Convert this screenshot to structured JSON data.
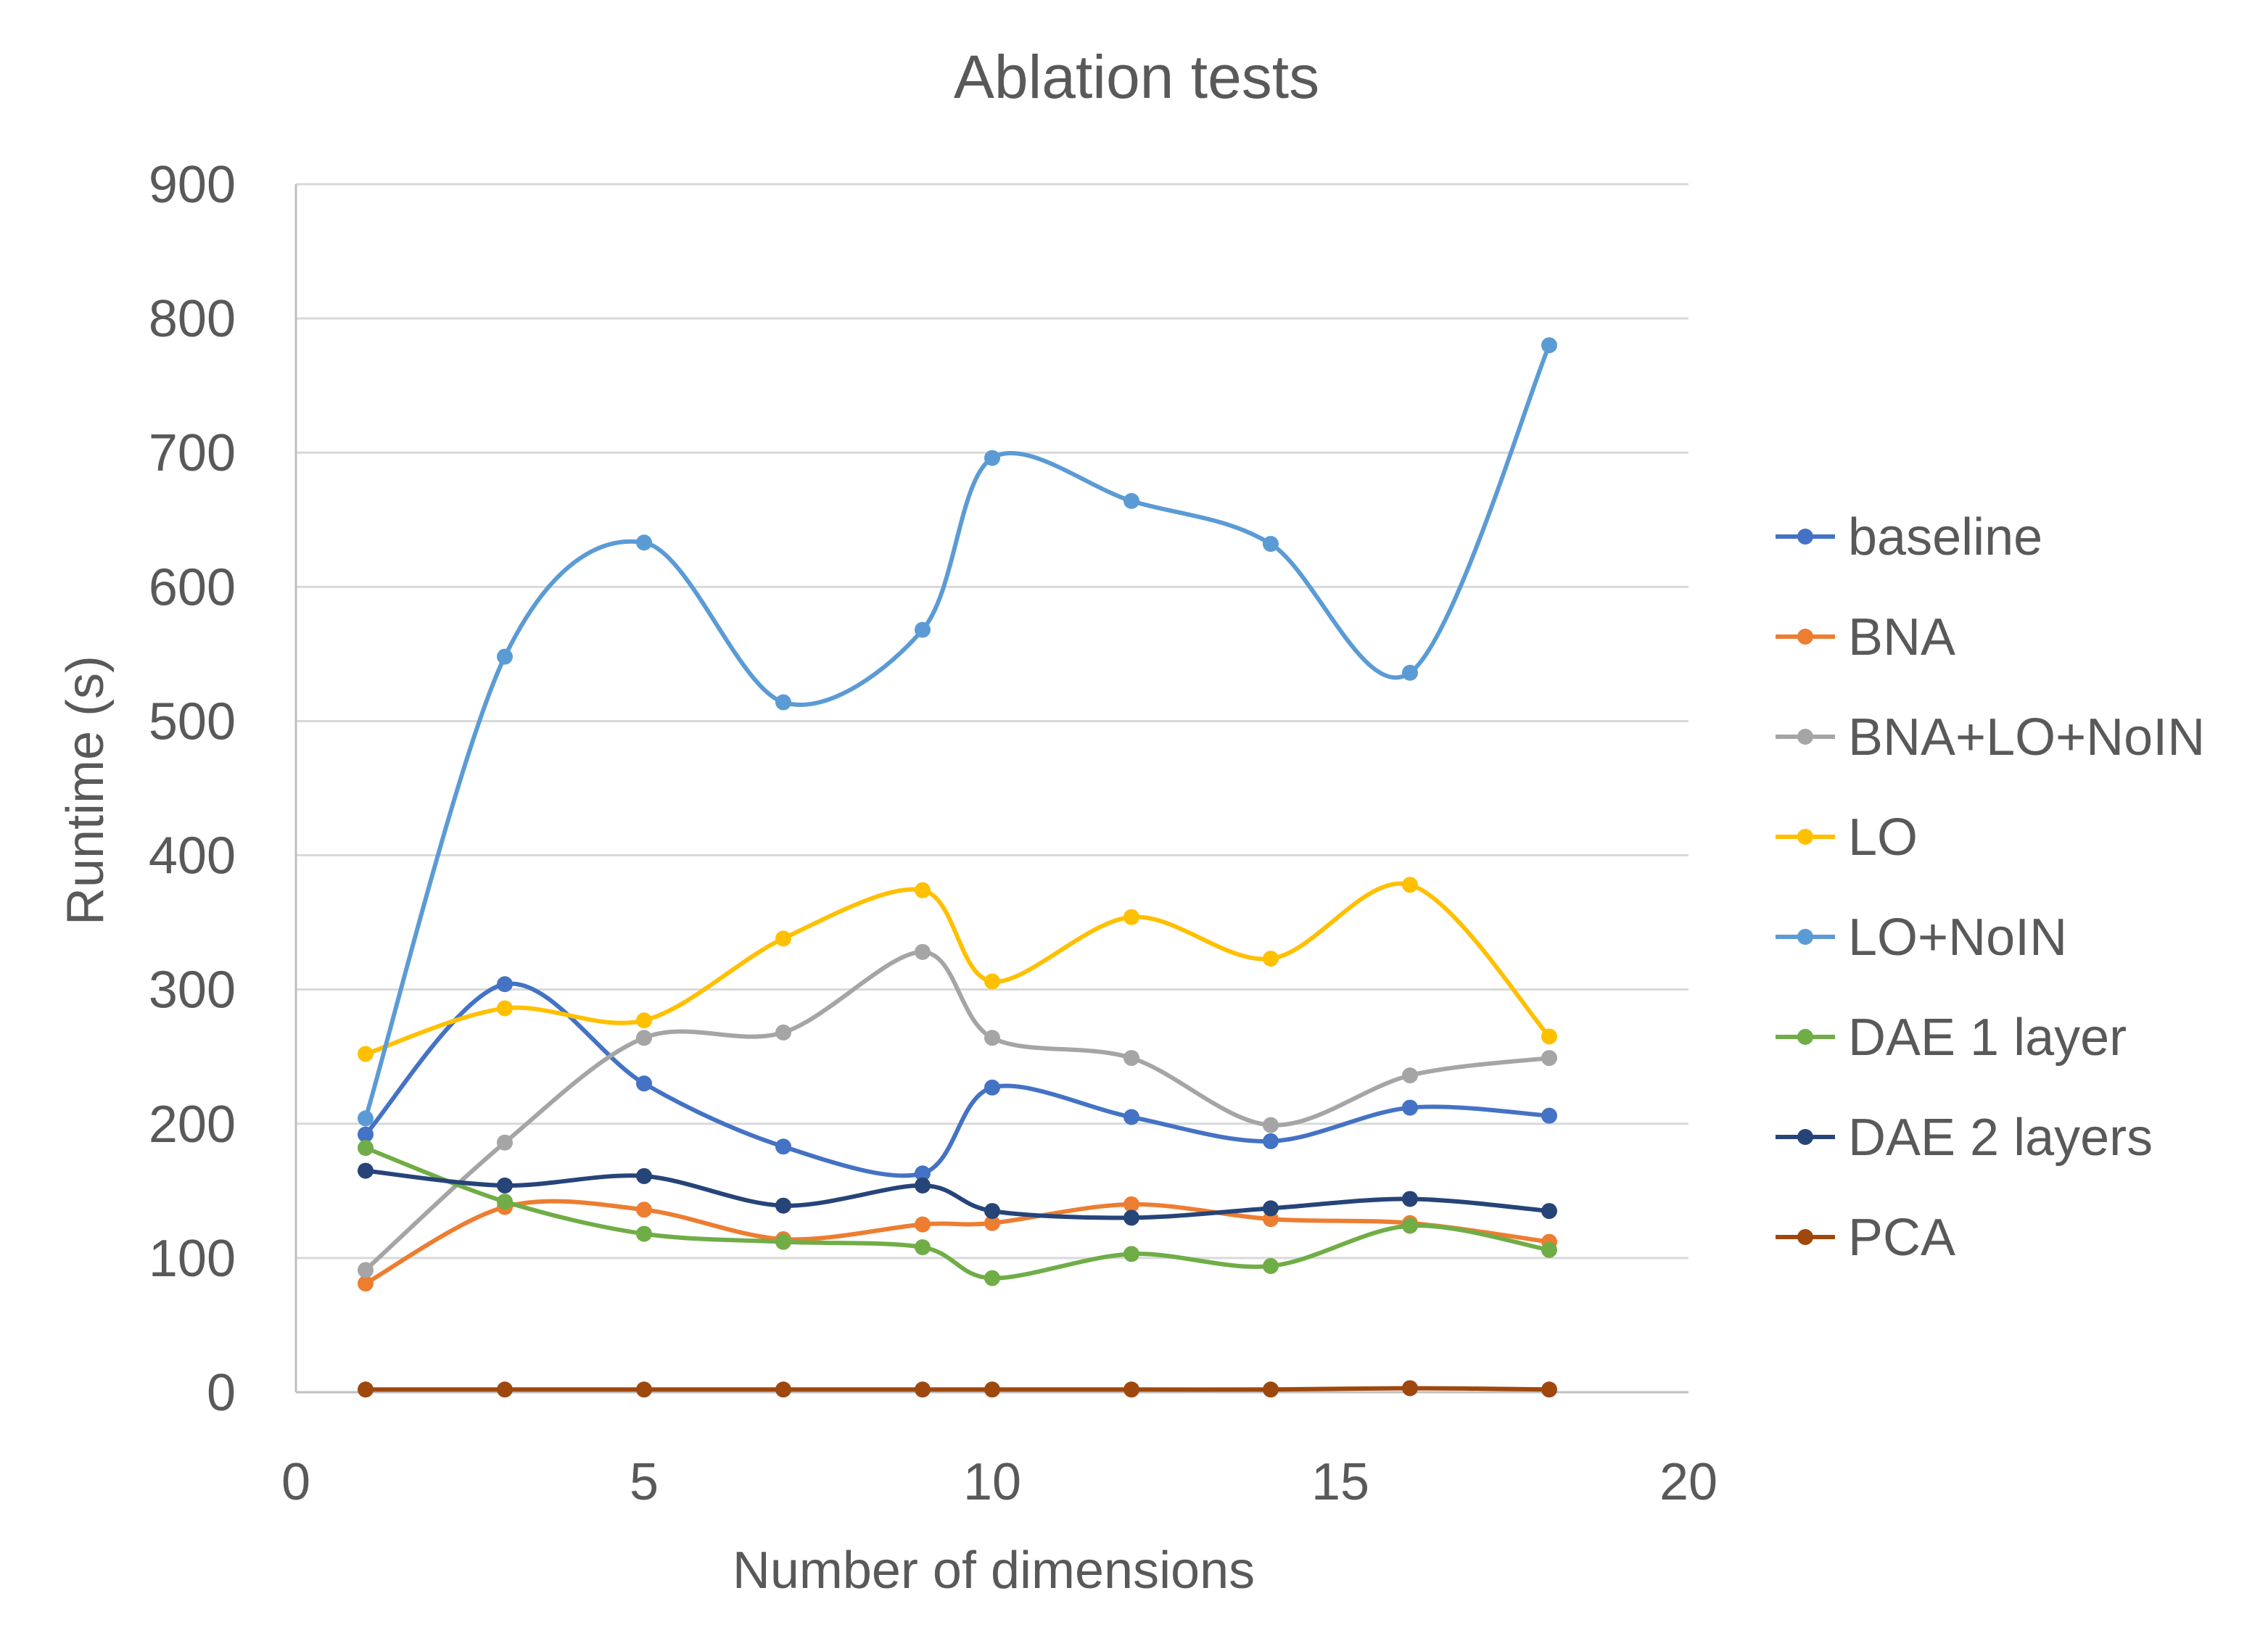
{
  "chart_data": {
    "type": "line",
    "title": "Ablation tests",
    "xlabel": "Number of dimensions",
    "ylabel": "Runtime (s)",
    "xlim": [
      0,
      20
    ],
    "ylim": [
      0,
      900
    ],
    "x_ticks": [
      "0",
      "5",
      "10",
      "15",
      "20"
    ],
    "y_ticks": [
      "0",
      "100",
      "200",
      "300",
      "400",
      "500",
      "600",
      "700",
      "800",
      "900"
    ],
    "grid": "horizontal",
    "legend_position": "right",
    "x": [
      1,
      3,
      5,
      7,
      9,
      10,
      12,
      14,
      16,
      18
    ],
    "series": [
      {
        "name": "baseline",
        "color": "#4472C4",
        "values": [
          192,
          304,
          230,
          183,
          163,
          227,
          205,
          187,
          212,
          206
        ]
      },
      {
        "name": "BNA",
        "color": "#ED7D31",
        "values": [
          81,
          138,
          136,
          114,
          125,
          126,
          140,
          129,
          126,
          112
        ]
      },
      {
        "name": "BNA+LO+NoIN",
        "color": "#A5A5A5",
        "values": [
          91,
          186,
          264,
          268,
          328,
          264,
          249,
          199,
          236,
          249
        ]
      },
      {
        "name": "LO",
        "color": "#FFC000",
        "values": [
          252,
          286,
          277,
          338,
          374,
          306,
          354,
          323,
          378,
          265
        ]
      },
      {
        "name": "LO+NoIN",
        "color": "#5B9BD5",
        "values": [
          204,
          548,
          633,
          514,
          568,
          696,
          664,
          632,
          536,
          780
        ]
      },
      {
        "name": "DAE 1 layer",
        "color": "#70AD47",
        "values": [
          182,
          142,
          118,
          112,
          108,
          85,
          103,
          94,
          124,
          106
        ]
      },
      {
        "name": "DAE 2 layers",
        "color": "#264478",
        "values": [
          165,
          154,
          161,
          139,
          154,
          135,
          130,
          137,
          144,
          135
        ]
      },
      {
        "name": "PCA",
        "color": "#9E480E",
        "values": [
          2,
          2,
          2,
          2,
          2,
          2,
          2,
          2,
          3,
          2
        ]
      }
    ]
  }
}
